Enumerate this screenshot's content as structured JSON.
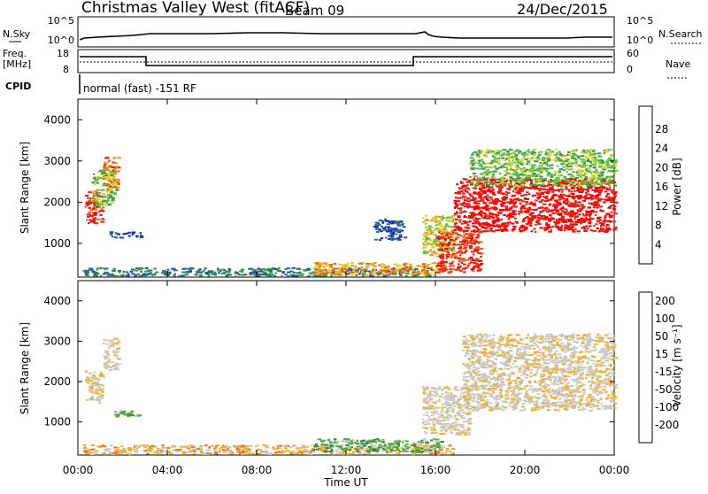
{
  "header": {
    "title": "Christmas Valley West (fitACF)",
    "beam": "Beam 09",
    "date": "24/Dec/2015"
  },
  "top_panels": {
    "nsky_label": "N.Sky",
    "nsky_ticks": [
      "10^5",
      "10^0"
    ],
    "nsearch_label": "N.Search",
    "nsearch_ticks": [
      "10^5",
      "10^0"
    ],
    "freq_label_1": "Freq.",
    "freq_label_2": "[MHz]",
    "freq_ticks": [
      "18",
      "8"
    ],
    "nave_label": "Nave",
    "nave_ticks": [
      "60",
      "0"
    ],
    "cpid_label": "CPID",
    "cpid_text": "normal (fast) -151 RF"
  },
  "colors": {
    "power_scale": [
      "#1020e0",
      "#2850b0",
      "#2a7a5a",
      "#3a9a4a",
      "#60c040",
      "#e8d020",
      "#f0a020",
      "#f06010",
      "#e82010",
      "#ff0000"
    ],
    "velocity_scale": [
      "#1a2ab0",
      "#205a9a",
      "#2a8a4a",
      "#50b030",
      "#c8c8c8",
      "#c8c8c8",
      "#f0b020",
      "#f07010",
      "#f03010",
      "#ff0000"
    ],
    "ground_scatter": "#c0c0c0"
  },
  "chart_data": [
    {
      "type": "heatmap",
      "name": "power",
      "xlabel": "",
      "ylabel": "Slant Range [km]",
      "xlim": [
        0,
        24
      ],
      "ylim": [
        180,
        4500
      ],
      "yticks": [
        "4000",
        "3000",
        "2000",
        "1000"
      ],
      "colorbar_label": "Power [dB]",
      "colorbar_ticks": [
        "28",
        "24",
        "20",
        "16",
        "12",
        "8",
        "4"
      ],
      "regions": [
        {
          "t0": 0.3,
          "t1": 1.1,
          "r0": 1500,
          "r1": 2300,
          "level": 8
        },
        {
          "t0": 1.1,
          "t1": 1.8,
          "r0": 2300,
          "r1": 3100,
          "level": 7
        },
        {
          "t0": 0.6,
          "t1": 1.6,
          "r0": 1900,
          "r1": 2800,
          "level": 4
        },
        {
          "t0": 1.4,
          "t1": 2.8,
          "r0": 1150,
          "r1": 1300,
          "level": 1
        },
        {
          "t0": 0.2,
          "t1": 15.8,
          "r0": 220,
          "r1": 420,
          "level": 2
        },
        {
          "t0": 10.5,
          "t1": 16.2,
          "r0": 250,
          "r1": 550,
          "level": 6
        },
        {
          "t0": 13.2,
          "t1": 14.6,
          "r0": 1100,
          "r1": 1600,
          "level": 1
        },
        {
          "t0": 15.4,
          "t1": 16.8,
          "r0": 700,
          "r1": 1700,
          "level": 5
        },
        {
          "t0": 16.0,
          "t1": 18.0,
          "r0": 300,
          "r1": 1300,
          "level": 8
        },
        {
          "t0": 16.8,
          "t1": 24.0,
          "r0": 1300,
          "r1": 2600,
          "level": 9
        },
        {
          "t0": 17.5,
          "t1": 24.0,
          "r0": 2400,
          "r1": 3300,
          "level": 4
        }
      ]
    },
    {
      "type": "heatmap",
      "name": "velocity",
      "xlabel": "Time UT",
      "ylabel": "Slant Range [km]",
      "xlim": [
        0,
        24
      ],
      "ylim": [
        180,
        4500
      ],
      "yticks": [
        "4000",
        "3000",
        "2000",
        "1000"
      ],
      "xticks": [
        "00:00",
        "04:00",
        "08:00",
        "12:00",
        "16:00",
        "20:00",
        "00:00"
      ],
      "colorbar_label": "Velocity [m s⁻¹]",
      "colorbar_ticks": [
        "200",
        "100",
        "50",
        "15",
        "-15",
        "-50",
        "-100",
        "-200"
      ],
      "regions": [
        {
          "t0": 0.3,
          "t1": 1.1,
          "r0": 1500,
          "r1": 2300,
          "level": 5
        },
        {
          "t0": 1.1,
          "t1": 1.8,
          "r0": 2300,
          "r1": 3100,
          "level": 5
        },
        {
          "t0": 1.3,
          "t1": 2.8,
          "r0": 1150,
          "r1": 1300,
          "level": 3
        },
        {
          "t0": 0.2,
          "t1": 16.8,
          "r0": 220,
          "r1": 450,
          "level": 6
        },
        {
          "t0": 10.5,
          "t1": 16.2,
          "r0": 280,
          "r1": 600,
          "level": 3
        },
        {
          "t0": 15.4,
          "t1": 17.5,
          "r0": 700,
          "r1": 1900,
          "level": 5
        },
        {
          "t0": 17.2,
          "t1": 24.0,
          "r0": 1300,
          "r1": 3200,
          "level": 5
        }
      ]
    }
  ]
}
